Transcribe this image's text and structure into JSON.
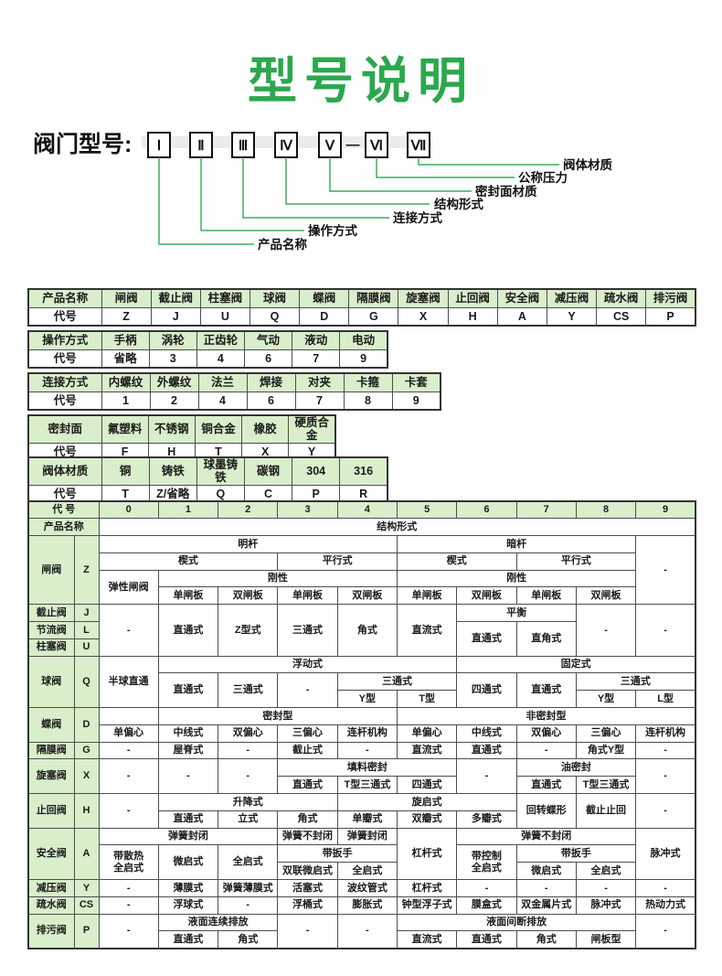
{
  "title": "型号说明",
  "colors": {
    "title_green": "#2ba84c",
    "line_green": "#3fae5c",
    "header_fill": "#d9eecb",
    "border_dark": "#333333",
    "border_mid": "#4d4d4d"
  },
  "diagram": {
    "label": "阀门型号:",
    "boxes": [
      "Ⅰ",
      "Ⅱ",
      "Ⅲ",
      "Ⅳ",
      "Ⅴ",
      "Ⅵ",
      "Ⅶ"
    ],
    "separator": "—",
    "callouts": [
      "产品名称",
      "操作方式",
      "连接方式",
      "结构形式",
      "密封面材质",
      "公称压力",
      "阀体材质"
    ]
  },
  "code_tables": [
    {
      "name": "产品名称",
      "rows": [
        [
          "产品名称",
          "闸阀",
          "截止阀",
          "柱塞阀",
          "球阀",
          "蝶阀",
          "隔膜阀",
          "旋塞阀",
          "止回阀",
          "安全阀",
          "减压阀",
          "疏水阀",
          "排污阀"
        ],
        [
          "代号",
          "Z",
          "J",
          "U",
          "Q",
          "D",
          "G",
          "X",
          "H",
          "A",
          "Y",
          "CS",
          "P"
        ]
      ]
    },
    {
      "name": "操作方式",
      "rows": [
        [
          "操作方式",
          "手柄",
          "涡轮",
          "正齿轮",
          "气动",
          "液动",
          "电动"
        ],
        [
          "代号",
          "省略",
          "3",
          "4",
          "6",
          "7",
          "9"
        ]
      ]
    },
    {
      "name": "连接方式",
      "rows": [
        [
          "连接方式",
          "内螺纹",
          "外螺纹",
          "法兰",
          "焊接",
          "对夹",
          "卡箍",
          "卡套"
        ],
        [
          "代号",
          "1",
          "2",
          "4",
          "6",
          "7",
          "8",
          "9"
        ]
      ]
    },
    {
      "name": "密封面",
      "rows": [
        [
          "密封面",
          "氟塑料",
          "不锈钢",
          "铜合金",
          "橡胶",
          "硬质合金"
        ],
        [
          "代号",
          "F",
          "H",
          "T",
          "X",
          "Y"
        ]
      ]
    },
    {
      "name": "阀体材质",
      "rows": [
        [
          "阀体材质",
          "铜",
          "铸铁",
          "球墨铸铁",
          "碳钢",
          "304",
          "316"
        ],
        [
          "代号",
          "T",
          "Z/省略",
          "Q",
          "C",
          "P",
          "R"
        ]
      ]
    }
  ],
  "structure_table": {
    "rows": [
      [
        {
          "t": "代 号",
          "cs": 2,
          "h": 1
        },
        {
          "t": "0",
          "h": 1
        },
        {
          "t": "1",
          "h": 1
        },
        {
          "t": "2",
          "h": 1
        },
        {
          "t": "3",
          "h": 1
        },
        {
          "t": "4",
          "h": 1
        },
        {
          "t": "5",
          "h": 1
        },
        {
          "t": "6",
          "h": 1
        },
        {
          "t": "7",
          "h": 1
        },
        {
          "t": "8",
          "h": 1
        },
        {
          "t": "9",
          "h": 1
        }
      ],
      [
        {
          "t": "产品名称",
          "cs": 2,
          "h": 1
        },
        {
          "t": "结构形式",
          "cs": 10
        }
      ],
      [
        {
          "t": "闸阀",
          "rs": 4,
          "h": 1
        },
        {
          "t": "Z",
          "rs": 4,
          "h": 1
        },
        {
          "t": "明杆",
          "cs": 5
        },
        {
          "t": "暗杆",
          "cs": 4
        },
        {
          "t": "-",
          "rs": 4
        }
      ],
      [
        {
          "t": "楔式",
          "cs": 3
        },
        {
          "t": "平行式",
          "cs": 2
        },
        {
          "t": "楔式",
          "cs": 2
        },
        {
          "t": "平行式",
          "cs": 2
        }
      ],
      [
        {
          "t": "弹性闸阀",
          "rs": 2
        },
        {
          "t": "刚性",
          "cs": 4
        },
        {
          "t": "刚性",
          "cs": 4
        }
      ],
      [
        {
          "t": "单闸板"
        },
        {
          "t": "双闸板"
        },
        {
          "t": "单闸板"
        },
        {
          "t": "双闸板"
        },
        {
          "t": "单闸板"
        },
        {
          "t": "双闸板"
        },
        {
          "t": "单闸板"
        },
        {
          "t": "双闸板"
        }
      ],
      [
        {
          "t": "截止阀",
          "h": 1
        },
        {
          "t": "J",
          "h": 1
        },
        {
          "t": "-",
          "rs": 3
        },
        {
          "t": "直通式",
          "rs": 3
        },
        {
          "t": "Z型式",
          "rs": 3
        },
        {
          "t": "三通式",
          "rs": 3
        },
        {
          "t": "角式",
          "rs": 3
        },
        {
          "t": "直流式",
          "rs": 3
        },
        {
          "t": "平衡",
          "cs": 2
        },
        {
          "t": "-",
          "rs": 3
        },
        {
          "t": "-",
          "rs": 3
        }
      ],
      [
        {
          "t": "节流阀",
          "h": 1
        },
        {
          "t": "L",
          "h": 1
        },
        {
          "t": "直通式",
          "rs": 2
        },
        {
          "t": "直角式",
          "rs": 2
        }
      ],
      [
        {
          "t": "柱塞阀",
          "h": 1
        },
        {
          "t": "U",
          "h": 1
        }
      ],
      [
        {
          "t": "球阀",
          "rs": 3,
          "h": 1
        },
        {
          "t": "Q",
          "rs": 3,
          "h": 1
        },
        {
          "t": "半球直通",
          "rs": 3
        },
        {
          "t": "浮动式",
          "cs": 5
        },
        {
          "t": "固定式",
          "cs": 4
        }
      ],
      [
        {
          "t": "直通式",
          "rs": 2
        },
        {
          "t": "三通式",
          "rs": 2
        },
        {
          "t": "-",
          "rs": 2
        },
        {
          "t": "三通式",
          "cs": 2
        },
        {
          "t": "四通式",
          "rs": 2
        },
        {
          "t": "直通式",
          "rs": 2
        },
        {
          "t": "三通式",
          "cs": 2
        }
      ],
      [
        {
          "t": "Y型"
        },
        {
          "t": "T型"
        },
        {
          "t": "Y型"
        },
        {
          "t": "L型"
        }
      ],
      [
        {
          "t": "蝶阀",
          "rs": 2,
          "h": 1
        },
        {
          "t": "D",
          "rs": 2,
          "h": 1
        },
        {
          "t": ""
        },
        {
          "t": "密封型",
          "cs": 4
        },
        {
          "t": "非密封型",
          "cs": 5
        }
      ],
      [
        {
          "t": "单偏心"
        },
        {
          "t": "中线式"
        },
        {
          "t": "双偏心"
        },
        {
          "t": "三偏心"
        },
        {
          "t": "连杆机构"
        },
        {
          "t": "单偏心"
        },
        {
          "t": "中线式"
        },
        {
          "t": "双偏心"
        },
        {
          "t": "三偏心"
        },
        {
          "t": "连杆机构"
        }
      ],
      [
        {
          "t": "隔膜阀",
          "h": 1
        },
        {
          "t": "G",
          "h": 1
        },
        {
          "t": "-"
        },
        {
          "t": "屋脊式"
        },
        {
          "t": "-"
        },
        {
          "t": "截止式"
        },
        {
          "t": "-"
        },
        {
          "t": "直流式"
        },
        {
          "t": "直通式"
        },
        {
          "t": "-"
        },
        {
          "t": "角式Y型"
        },
        {
          "t": "-"
        }
      ],
      [
        {
          "t": "旋塞阀",
          "rs": 2,
          "h": 1
        },
        {
          "t": "X",
          "rs": 2,
          "h": 1
        },
        {
          "t": "-",
          "rs": 2
        },
        {
          "t": "-",
          "rs": 2
        },
        {
          "t": "-",
          "rs": 2
        },
        {
          "t": "填料密封",
          "cs": 3
        },
        {
          "t": "-",
          "rs": 2
        },
        {
          "t": "油密封",
          "cs": 2
        },
        {
          "t": "-",
          "rs": 2
        }
      ],
      [
        {
          "t": "直通式"
        },
        {
          "t": "T型三通式"
        },
        {
          "t": "四通式"
        },
        {
          "t": "直通式"
        },
        {
          "t": "T型三通式"
        }
      ],
      [
        {
          "t": "止回阀",
          "rs": 2,
          "h": 1
        },
        {
          "t": "H",
          "rs": 2,
          "h": 1
        },
        {
          "t": "-",
          "rs": 2
        },
        {
          "t": "升降式",
          "cs": 3
        },
        {
          "t": "旋启式",
          "cs": 3
        },
        {
          "t": "回转蝶形",
          "rs": 2
        },
        {
          "t": "截止止回",
          "rs": 2
        },
        {
          "t": "-",
          "rs": 2
        }
      ],
      [
        {
          "t": "直通式"
        },
        {
          "t": "立式"
        },
        {
          "t": "角式"
        },
        {
          "t": "单瓣式"
        },
        {
          "t": "双瓣式"
        },
        {
          "t": "多瓣式"
        }
      ],
      [
        {
          "t": "安全阀",
          "rs": 3,
          "h": 1
        },
        {
          "t": "A",
          "rs": 3,
          "h": 1
        },
        {
          "t": "弹簧封闭",
          "cs": 3
        },
        {
          "t": "弹簧不封闭"
        },
        {
          "t": "弹簧封闭"
        },
        {
          "t": "杠杆式",
          "rs": 3
        },
        {
          "t": "弹簧不封闭",
          "cs": 3
        },
        {
          "t": "脉冲式",
          "rs": 3
        }
      ],
      [
        {
          "t": "带散热\n全启式",
          "rs": 2
        },
        {
          "t": "微启式",
          "rs": 2
        },
        {
          "t": "全启式",
          "rs": 2
        },
        {
          "t": "带扳手",
          "cs": 2
        },
        {
          "t": "带控制\n全启式",
          "rs": 2
        },
        {
          "t": "带扳手",
          "cs": 2
        }
      ],
      [
        {
          "t": "双联微启式"
        },
        {
          "t": "全启式"
        },
        {
          "t": "微启式"
        },
        {
          "t": "全启式"
        }
      ],
      [
        {
          "t": "减压阀",
          "h": 1
        },
        {
          "t": "Y",
          "h": 1
        },
        {
          "t": "-"
        },
        {
          "t": "薄膜式"
        },
        {
          "t": "弹簧薄膜式"
        },
        {
          "t": "活塞式"
        },
        {
          "t": "波纹管式"
        },
        {
          "t": "杠杆式"
        },
        {
          "t": "-"
        },
        {
          "t": "-"
        },
        {
          "t": "-"
        },
        {
          "t": "-"
        }
      ],
      [
        {
          "t": "疏水阀",
          "h": 1
        },
        {
          "t": "CS",
          "h": 1
        },
        {
          "t": "-"
        },
        {
          "t": "浮球式"
        },
        {
          "t": "-"
        },
        {
          "t": "浮桶式"
        },
        {
          "t": "膨胀式"
        },
        {
          "t": "钟型浮子式"
        },
        {
          "t": "膜盒式"
        },
        {
          "t": "双金属片式"
        },
        {
          "t": "脉冲式"
        },
        {
          "t": "热动力式"
        }
      ],
      [
        {
          "t": "排污阀",
          "rs": 2,
          "h": 1
        },
        {
          "t": "P",
          "rs": 2,
          "h": 1
        },
        {
          "t": "-",
          "rs": 2
        },
        {
          "t": "液面连续排放",
          "cs": 2
        },
        {
          "t": "-",
          "rs": 2
        },
        {
          "t": "-",
          "rs": 2
        },
        {
          "t": "液面间断排放",
          "cs": 4
        },
        {
          "t": "-",
          "rs": 2
        }
      ],
      [
        {
          "t": "直通式"
        },
        {
          "t": "角式"
        },
        {
          "t": "直流式"
        },
        {
          "t": "直通式"
        },
        {
          "t": "角式"
        },
        {
          "t": "闸板型"
        }
      ]
    ]
  }
}
